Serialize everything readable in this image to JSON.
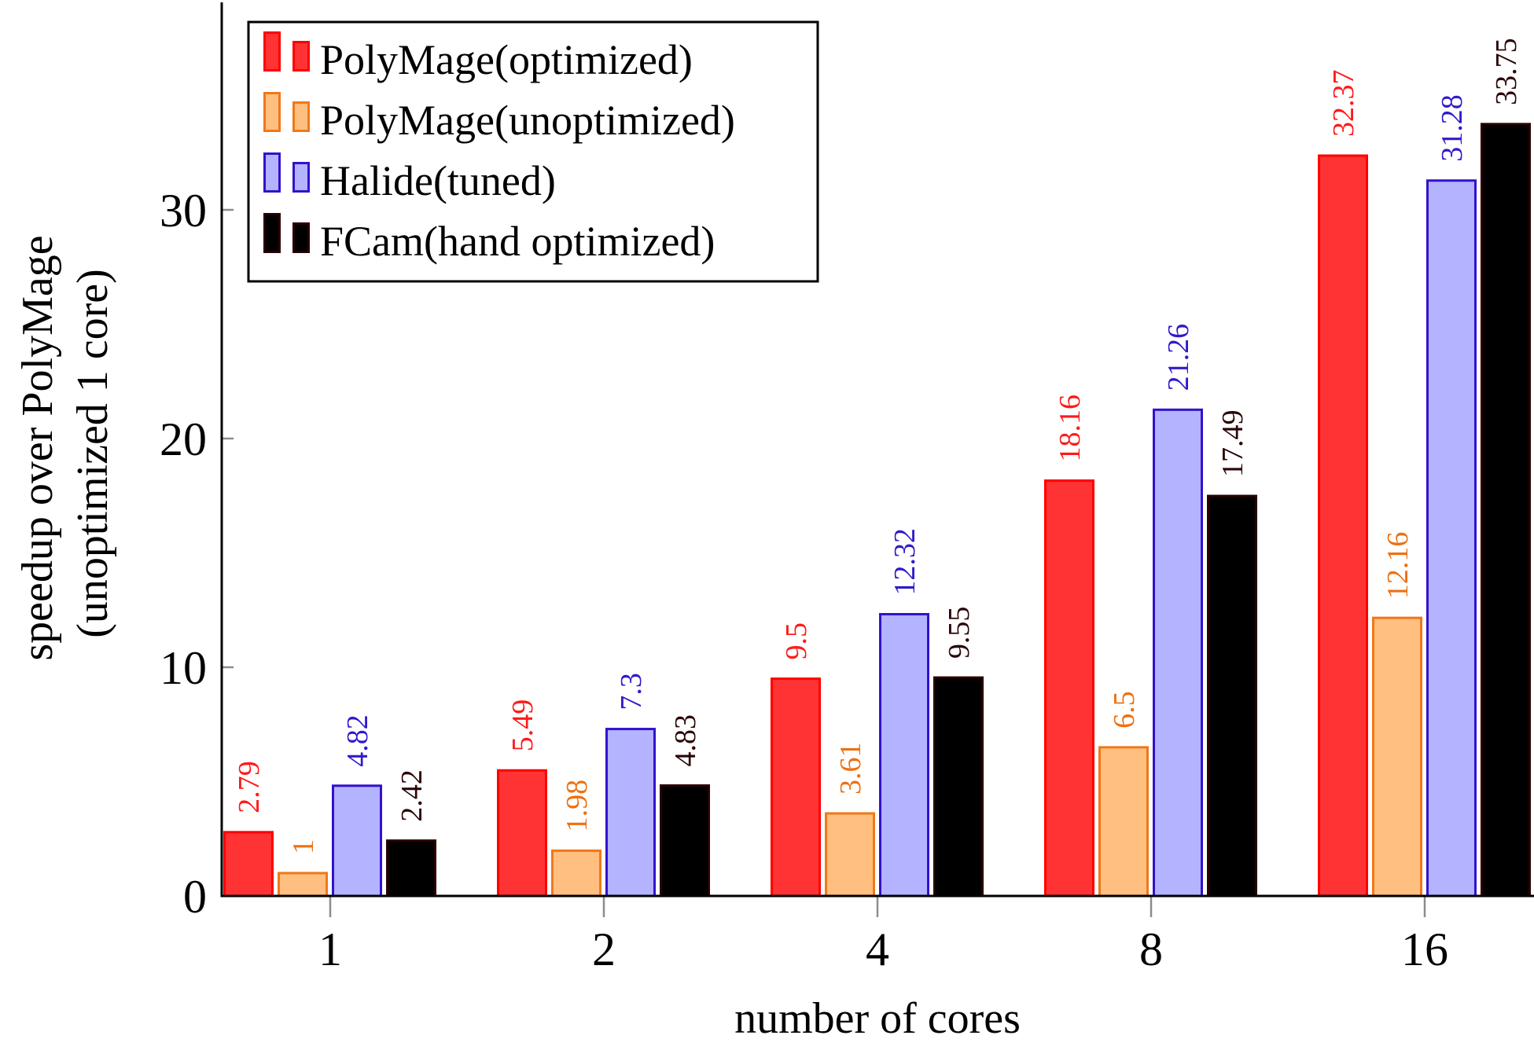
{
  "chart_data": {
    "type": "bar",
    "title": "",
    "xlabel": "number of cores",
    "ylabel_lines": [
      "speedup over PolyMage",
      "(unoptimized 1 core)"
    ],
    "categories": [
      "1",
      "2",
      "4",
      "8",
      "16"
    ],
    "ylim": [
      0,
      39
    ],
    "yticks": [
      0,
      10,
      20,
      30
    ],
    "grid": false,
    "legend_position": "top-left",
    "series": [
      {
        "name": "PolyMage(optimized)",
        "values": [
          2.79,
          5.49,
          9.5,
          18.16,
          32.37
        ],
        "labels": [
          "2.79",
          "5.49",
          "9.5",
          "18.16",
          "32.37"
        ],
        "fill": "#ff3333",
        "stroke": "#ff0000",
        "label_color": "#ff1a1a"
      },
      {
        "name": "PolyMage(unoptimized)",
        "values": [
          1,
          1.98,
          3.61,
          6.5,
          12.16
        ],
        "labels": [
          "1",
          "1.98",
          "3.61",
          "6.5",
          "12.16"
        ],
        "fill": "#ffbf80",
        "stroke": "#f07818",
        "label_color": "#ee7011"
      },
      {
        "name": "Halide(tuned)",
        "values": [
          4.82,
          7.3,
          12.32,
          21.26,
          31.28
        ],
        "labels": [
          "4.82",
          "7.3",
          "12.32",
          "21.26",
          "31.28"
        ],
        "fill": "#b3b3ff",
        "stroke": "#3311cc",
        "label_color": "#2f1bcc"
      },
      {
        "name": "FCam(hand optimized)",
        "values": [
          2.42,
          4.83,
          9.55,
          17.49,
          33.75
        ],
        "labels": [
          "2.42",
          "4.83",
          "9.55",
          "17.49",
          "33.75"
        ],
        "fill": "#000000",
        "stroke": "#2a0000",
        "label_color": "#2a0505"
      }
    ]
  }
}
